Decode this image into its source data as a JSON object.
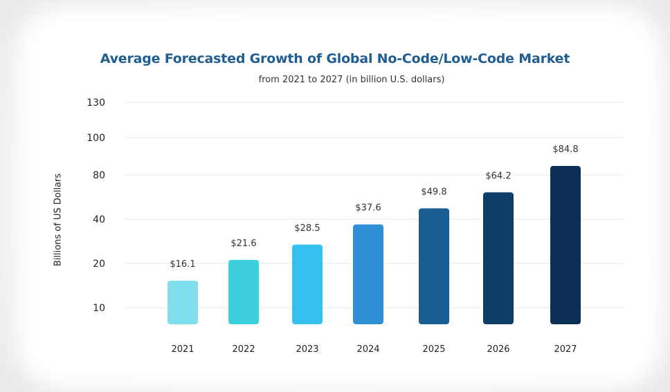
{
  "chart_data": {
    "type": "bar",
    "title": "Average Forecasted Growth of Global No-Code/Low-Code  Market",
    "subtitle": "from 2021 to 2027 (in billion U.S. dollars)",
    "ylabel": "Billions of US Dollars",
    "xlabel": "",
    "categories": [
      "2021",
      "2022",
      "2023",
      "2024",
      "2025",
      "2026",
      "2027"
    ],
    "values": [
      16.1,
      21.6,
      28.5,
      37.6,
      49.8,
      64.2,
      84.8
    ],
    "data_labels": [
      "$16.1",
      "$21.6",
      "$28.5",
      "$37.6",
      "$49.8",
      "$64.2",
      "$84.8"
    ],
    "y_ticks": [
      10,
      20,
      40,
      80,
      100,
      130
    ],
    "y_tick_labels": [
      "10",
      "20",
      "40",
      "80",
      "100",
      "130"
    ],
    "bar_colors": [
      "#7fdfec",
      "#3dcfdc",
      "#35c0ef",
      "#2e8fd4",
      "#1a5c94",
      "#0f3d68",
      "#0b2f55"
    ],
    "grid": "horizontal",
    "legend": "none"
  }
}
